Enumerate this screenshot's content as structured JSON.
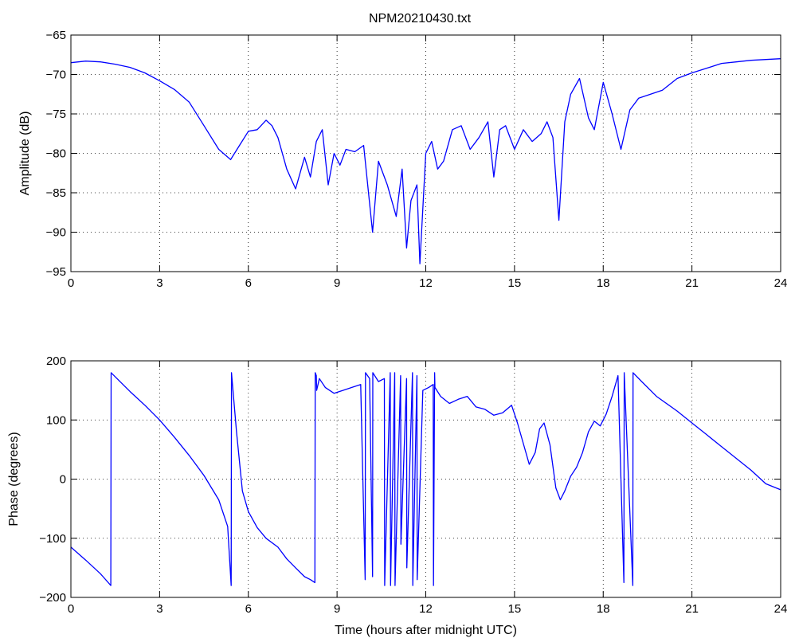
{
  "title": "NPM20210430.txt",
  "colors": {
    "series": "#0000ff",
    "axes": "#000000",
    "background": "#ffffff"
  },
  "chart_data": [
    {
      "type": "line",
      "xlabel": "",
      "ylabel": "Amplitude (dB)",
      "xlim": [
        0,
        24
      ],
      "ylim": [
        -95,
        -65
      ],
      "xticks": [
        0,
        3,
        6,
        9,
        12,
        15,
        18,
        21,
        24
      ],
      "yticks": [
        -95,
        -90,
        -85,
        -80,
        -75,
        -70,
        -65
      ],
      "grid": true,
      "x": [
        0,
        0.5,
        1,
        1.5,
        2,
        2.5,
        3,
        3.5,
        4,
        4.5,
        5,
        5.4,
        5.7,
        6.0,
        6.3,
        6.6,
        6.8,
        7.0,
        7.3,
        7.6,
        7.9,
        8.1,
        8.3,
        8.5,
        8.7,
        8.9,
        9.1,
        9.3,
        9.6,
        9.9,
        10.2,
        10.4,
        10.7,
        11.0,
        11.2,
        11.35,
        11.5,
        11.7,
        11.8,
        12.0,
        12.2,
        12.4,
        12.6,
        12.9,
        13.2,
        13.5,
        13.8,
        14.1,
        14.3,
        14.5,
        14.7,
        15.0,
        15.3,
        15.6,
        15.9,
        16.1,
        16.3,
        16.5,
        16.7,
        16.9,
        17.2,
        17.5,
        17.7,
        18.0,
        18.3,
        18.6,
        18.9,
        19.2,
        19.6,
        20.0,
        20.5,
        21.0,
        21.5,
        22.0,
        22.5,
        23.0,
        23.5,
        24.0
      ],
      "values": [
        -68.5,
        -68.3,
        -68.4,
        -68.7,
        -69.1,
        -69.8,
        -70.8,
        -71.9,
        -73.5,
        -76.5,
        -79.5,
        -80.8,
        -79.0,
        -77.2,
        -77.0,
        -75.8,
        -76.5,
        -78.0,
        -82.0,
        -84.5,
        -80.5,
        -83.0,
        -78.5,
        -77.0,
        -84.0,
        -80.0,
        -81.5,
        -79.5,
        -79.8,
        -79.0,
        -90.0,
        -81.0,
        -84.0,
        -88.0,
        -82.0,
        -92.0,
        -86.0,
        -84.0,
        -94.0,
        -80.0,
        -78.5,
        -82.0,
        -81.0,
        -77.0,
        -76.5,
        -79.5,
        -78.0,
        -76.0,
        -83.0,
        -77.0,
        -76.5,
        -79.5,
        -77.0,
        -78.5,
        -77.5,
        -76.0,
        -78.0,
        -88.5,
        -76.0,
        -72.5,
        -70.5,
        -75.5,
        -77.0,
        -71.0,
        -75.0,
        -79.5,
        -74.5,
        -73.0,
        -72.5,
        -72.0,
        -70.5,
        -69.8,
        -69.2,
        -68.6,
        -68.4,
        -68.2,
        -68.1,
        -68.0
      ]
    },
    {
      "type": "line",
      "xlabel": "Time (hours after midnight UTC)",
      "ylabel": "Phase (degrees)",
      "xlim": [
        0,
        24
      ],
      "ylim": [
        -200,
        200
      ],
      "xticks": [
        0,
        3,
        6,
        9,
        12,
        15,
        18,
        21,
        24
      ],
      "yticks": [
        -200,
        -100,
        0,
        100,
        200
      ],
      "grid": true,
      "x": [
        0,
        0.5,
        1.0,
        1.35,
        1.36,
        2.0,
        2.5,
        3.0,
        3.5,
        4.0,
        4.5,
        5.0,
        5.3,
        5.42,
        5.43,
        5.6,
        5.8,
        6.0,
        6.3,
        6.6,
        7.0,
        7.3,
        7.6,
        7.9,
        8.1,
        8.25,
        8.26,
        8.3,
        8.31,
        8.4,
        8.6,
        8.9,
        9.2,
        9.5,
        9.8,
        9.95,
        9.96,
        10.1,
        10.2,
        10.21,
        10.4,
        10.6,
        10.61,
        10.8,
        10.81,
        10.95,
        10.96,
        11.15,
        11.16,
        11.35,
        11.36,
        11.55,
        11.56,
        11.7,
        11.71,
        11.9,
        12.1,
        12.25,
        12.26,
        12.3,
        12.31,
        12.5,
        12.8,
        13.1,
        13.4,
        13.7,
        14.0,
        14.3,
        14.6,
        14.9,
        15.1,
        15.3,
        15.5,
        15.7,
        15.85,
        16.0,
        16.2,
        16.4,
        16.55,
        16.7,
        16.9,
        17.1,
        17.3,
        17.5,
        17.7,
        17.9,
        18.1,
        18.3,
        18.5,
        18.7,
        18.71,
        19.0,
        19.01,
        19.3,
        19.8,
        20.5,
        21.0,
        21.5,
        22.0,
        22.5,
        23.0,
        23.5,
        24.0
      ],
      "values": [
        -115,
        -137,
        -160,
        -180,
        180,
        148,
        125,
        100,
        71,
        40,
        6,
        -35,
        -80,
        -180,
        180,
        80,
        -20,
        -55,
        -82,
        -100,
        -115,
        -135,
        -150,
        -165,
        -170,
        -175,
        180,
        175,
        150,
        170,
        155,
        145,
        150,
        155,
        160,
        -170,
        180,
        170,
        -165,
        180,
        165,
        170,
        -180,
        180,
        -180,
        180,
        -180,
        175,
        -110,
        170,
        -150,
        180,
        -180,
        175,
        -170,
        150,
        155,
        160,
        -180,
        180,
        155,
        140,
        128,
        135,
        140,
        122,
        118,
        108,
        112,
        125,
        95,
        60,
        25,
        45,
        85,
        95,
        58,
        -15,
        -35,
        -20,
        5,
        20,
        45,
        80,
        98,
        90,
        110,
        140,
        175,
        -175,
        180,
        -180,
        180,
        165,
        140,
        115,
        95,
        75,
        55,
        35,
        15,
        -8,
        -18
      ]
    }
  ]
}
